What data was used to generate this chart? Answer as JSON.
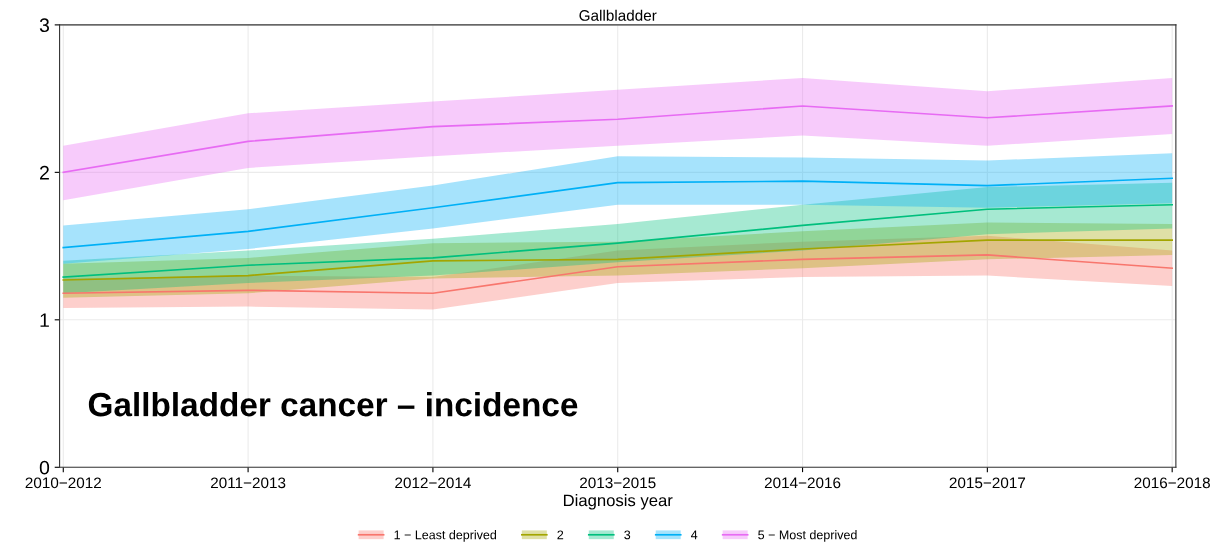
{
  "chart_data": {
    "type": "line",
    "title": "Gallbladder",
    "xlabel": "Diagnosis year",
    "categories": [
      "2010−2012",
      "2011−2013",
      "2012−2014",
      "2013−2015",
      "2014−2016",
      "2015−2017",
      "2016−2018"
    ],
    "series": [
      {
        "name": "1 − Least deprived",
        "color": "#f8766d",
        "values": [
          1.18,
          1.2,
          1.18,
          1.36,
          1.41,
          1.44,
          1.35
        ],
        "lower": [
          1.08,
          1.09,
          1.07,
          1.25,
          1.29,
          1.3,
          1.23
        ],
        "upper": [
          1.28,
          1.3,
          1.29,
          1.47,
          1.53,
          1.57,
          1.47
        ]
      },
      {
        "name": "2",
        "color": "#a3a500",
        "values": [
          1.27,
          1.3,
          1.4,
          1.41,
          1.48,
          1.54,
          1.54
        ],
        "lower": [
          1.15,
          1.18,
          1.28,
          1.3,
          1.35,
          1.41,
          1.44
        ],
        "upper": [
          1.38,
          1.42,
          1.52,
          1.53,
          1.6,
          1.66,
          1.65
        ]
      },
      {
        "name": "3",
        "color": "#00bf7d",
        "values": [
          1.29,
          1.37,
          1.42,
          1.52,
          1.64,
          1.75,
          1.78
        ],
        "lower": [
          1.18,
          1.25,
          1.3,
          1.39,
          1.47,
          1.58,
          1.62
        ],
        "upper": [
          1.4,
          1.47,
          1.55,
          1.65,
          1.78,
          1.9,
          1.93
        ]
      },
      {
        "name": "4",
        "color": "#00b0f6",
        "values": [
          1.49,
          1.6,
          1.76,
          1.93,
          1.94,
          1.91,
          1.96
        ],
        "lower": [
          1.38,
          1.48,
          1.62,
          1.78,
          1.78,
          1.76,
          1.79
        ],
        "upper": [
          1.64,
          1.75,
          1.91,
          2.11,
          2.1,
          2.08,
          2.13
        ]
      },
      {
        "name": "5 − Most deprived",
        "color": "#e76bf3",
        "values": [
          2.0,
          2.21,
          2.31,
          2.36,
          2.45,
          2.37,
          2.45
        ],
        "lower": [
          1.81,
          2.03,
          2.11,
          2.18,
          2.25,
          2.18,
          2.26
        ],
        "upper": [
          2.18,
          2.4,
          2.48,
          2.56,
          2.64,
          2.55,
          2.64
        ]
      }
    ],
    "ylim": [
      0,
      3
    ],
    "yticks": [
      0,
      1,
      2,
      3
    ],
    "grid": true,
    "legend": "bottom",
    "marker": "none",
    "line_style": "solid",
    "annotations": [
      "Gallbladder cancer – incidence"
    ]
  }
}
